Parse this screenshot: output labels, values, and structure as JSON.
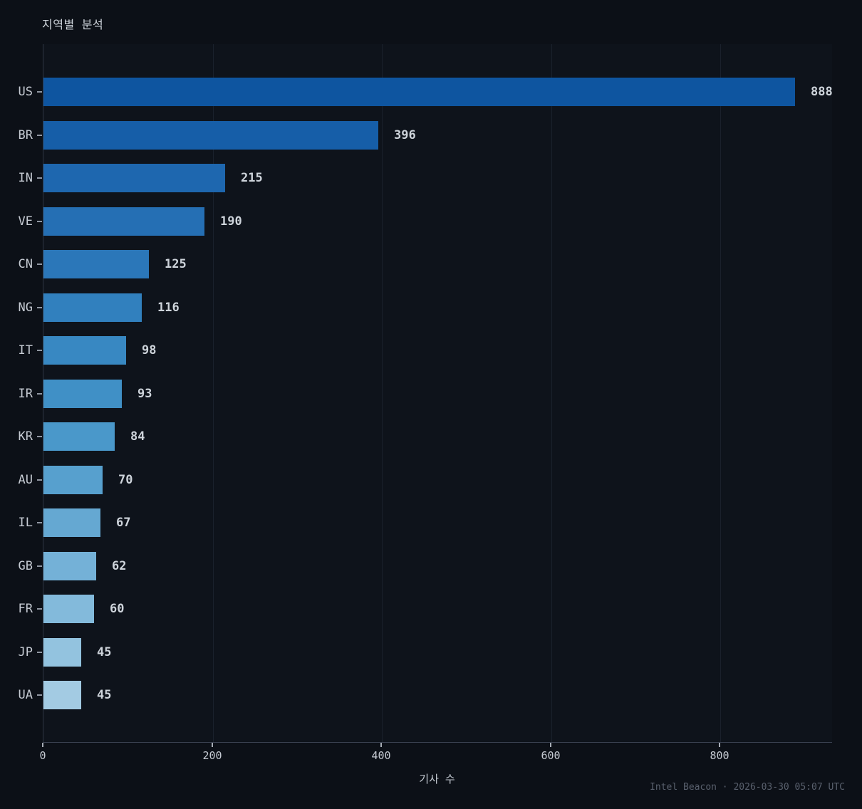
{
  "title": "지역별 분석",
  "xlabel": "기사 수",
  "footer": "Intel Beacon · 2026-03-30 05:07 UTC",
  "colors": {
    "figure_background": "#0c1017",
    "plot_background": "#0e131b",
    "gridline": "#1a212c",
    "axis_spine": "#3a4150",
    "tick_text": "#c6cbd3",
    "value_text": "#ced4db",
    "footer_text": "#59606d"
  },
  "chart_data": {
    "type": "bar",
    "orientation": "horizontal",
    "title": "지역별 분석",
    "xlabel": "기사 수",
    "ylabel": "",
    "categories": [
      "US",
      "BR",
      "IN",
      "VE",
      "CN",
      "NG",
      "IT",
      "IR",
      "KR",
      "AU",
      "IL",
      "GB",
      "FR",
      "JP",
      "UA"
    ],
    "values": [
      888,
      396,
      215,
      190,
      125,
      116,
      98,
      93,
      84,
      70,
      67,
      62,
      60,
      45,
      45
    ],
    "bar_colors": [
      "#0e55a0",
      "#165ea8",
      "#1e67af",
      "#256fb4",
      "#2b77b9",
      "#3180be",
      "#3888c2",
      "#4090c6",
      "#4a98ca",
      "#57a0ce",
      "#65a8d2",
      "#74b1d7",
      "#83badb",
      "#93c3df",
      "#a3cbe3"
    ],
    "value_labels": [
      888,
      396,
      215,
      190,
      125,
      116,
      98,
      93,
      84,
      70,
      67,
      62,
      60,
      45,
      45
    ],
    "xlim": [
      0,
      932
    ],
    "xticks": [
      0,
      200,
      400,
      600,
      800
    ],
    "grid": "vertical-subtle",
    "legend": "none",
    "sort": "descending"
  }
}
